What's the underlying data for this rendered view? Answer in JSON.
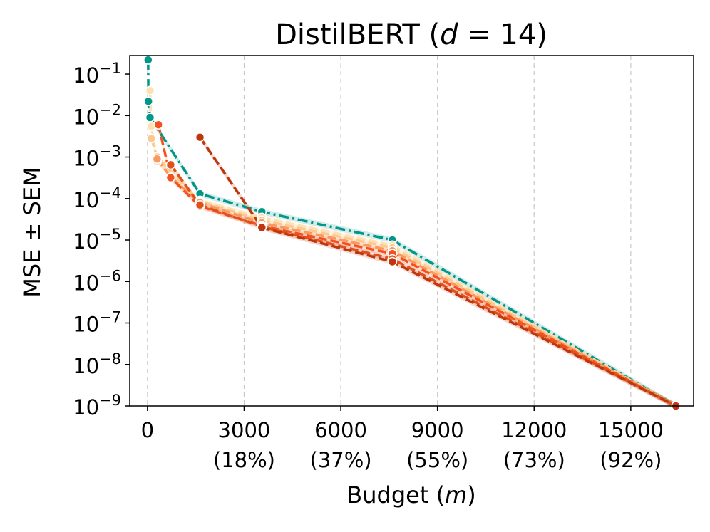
{
  "chart_data": {
    "type": "line",
    "title_main": "DistilBERT (",
    "title_var": "d",
    "title_rest": " = 14)",
    "xlabel_main": "Budget (",
    "xlabel_var": "m",
    "xlabel_rest": ")",
    "ylabel": "MSE ± SEM",
    "xlim": [
      -550,
      16950
    ],
    "ylim": [
      1e-09,
      0.28
    ],
    "yscale": "log",
    "grid": "vertical-dashed",
    "x_ticks": [
      {
        "value": 0,
        "label": "0",
        "sublabel": ""
      },
      {
        "value": 3000,
        "label": "3000",
        "sublabel": "(18%)"
      },
      {
        "value": 6000,
        "label": "6000",
        "sublabel": "(37%)"
      },
      {
        "value": 9000,
        "label": "9000",
        "sublabel": "(55%)"
      },
      {
        "value": 12000,
        "label": "12000",
        "sublabel": "(73%)"
      },
      {
        "value": 15000,
        "label": "15000",
        "sublabel": "(92%)"
      }
    ],
    "y_ticks": [
      {
        "value": 0.1,
        "exp": "−1"
      },
      {
        "value": 0.01,
        "exp": "−2"
      },
      {
        "value": 0.001,
        "exp": "−3"
      },
      {
        "value": 0.0001,
        "exp": "−4"
      },
      {
        "value": 1e-05,
        "exp": "−5"
      },
      {
        "value": 1e-06,
        "exp": "−6"
      },
      {
        "value": 1e-07,
        "exp": "−7"
      },
      {
        "value": 1e-08,
        "exp": "−8"
      },
      {
        "value": 1e-09,
        "exp": "−9"
      }
    ],
    "series": [
      {
        "color": "#009688",
        "dash": "dashdot",
        "points": [
          [
            20,
            0.22
          ],
          [
            30,
            0.022
          ],
          [
            80,
            0.009
          ],
          [
            1630,
            0.00013
          ],
          [
            3550,
            4.8e-05
          ],
          [
            7600,
            1e-05
          ],
          [
            16400,
            1e-09
          ]
        ]
      },
      {
        "color": "#ffe0b2",
        "dash": "dashed",
        "points": [
          [
            80,
            0.04
          ],
          [
            120,
            0.0055
          ],
          [
            300,
            0.00078
          ],
          [
            1630,
            9e-05
          ],
          [
            3550,
            3.5e-05
          ],
          [
            7600,
            7.5e-06
          ],
          [
            16400,
            1e-09
          ]
        ]
      },
      {
        "color": "#fcc890",
        "dash": "dashed",
        "points": [
          [
            120,
            0.0028
          ],
          [
            300,
            0.001
          ],
          [
            1630,
            8.5e-05
          ],
          [
            3550,
            3e-05
          ],
          [
            7600,
            6.5e-06
          ],
          [
            16400,
            1e-09
          ]
        ]
      },
      {
        "color": "#f89a5e",
        "dash": "dashed",
        "points": [
          [
            300,
            0.0009
          ],
          [
            720,
            0.00033
          ],
          [
            1630,
            8e-05
          ],
          [
            3550,
            2.6e-05
          ],
          [
            7600,
            5.5e-06
          ],
          [
            16400,
            1e-09
          ]
        ]
      },
      {
        "color": "#f4511e",
        "dash": "dashed",
        "points": [
          [
            340,
            0.006
          ],
          [
            720,
            0.00032
          ],
          [
            1630,
            6.5e-05
          ],
          [
            3550,
            2.2e-05
          ],
          [
            7600,
            4.7e-06
          ],
          [
            16400,
            1e-09
          ]
        ]
      },
      {
        "color": "#e0501a",
        "dash": "dashed",
        "points": [
          [
            720,
            0.00065
          ],
          [
            1630,
            7e-05
          ],
          [
            3550,
            2.1e-05
          ],
          [
            7600,
            3.5e-06
          ],
          [
            16400,
            1e-09
          ]
        ]
      },
      {
        "color": "#bf360c",
        "dash": "dashed",
        "points": [
          [
            1630,
            0.003
          ],
          [
            3550,
            2e-05
          ],
          [
            7600,
            3e-06
          ],
          [
            16400,
            1e-09
          ]
        ]
      }
    ]
  }
}
